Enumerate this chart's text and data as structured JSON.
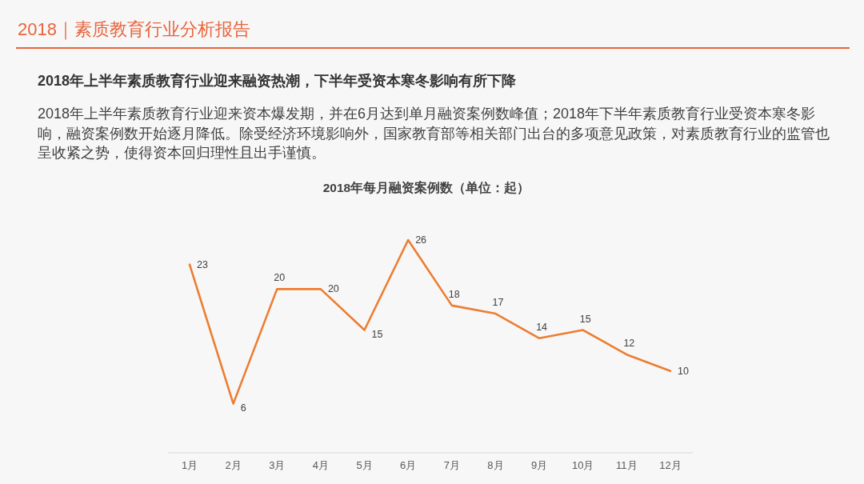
{
  "chart_data": {
    "type": "line",
    "title": "2018年每月融资案例数（单位：起）",
    "annotations": [
      "2018｜素质教育行业分析报告",
      "2018年上半年素质教育行业迎来融资热潮，下半年受资本寒冬影响有所下降",
      "2018年上半年素质教育行业迎来资本爆发期，并在6月达到单月融资案例数峰值；2018年下半年素质教育行业受资本寒冬影响，融资案例数开始逐月降低。除受经济环境影响外，国家教育部等相关部门出台的多项意见政策，对素质教育行业的监管也呈收紧之势，使得资本回归理性且出手谨慎。"
    ],
    "categories": [
      "1月",
      "2月",
      "3月",
      "4月",
      "5月",
      "6月",
      "7月",
      "8月",
      "9月",
      "10月",
      "11月",
      "12月"
    ],
    "values": [
      23,
      6,
      20,
      20,
      15,
      26,
      18,
      17,
      14,
      15,
      12,
      10
    ],
    "color": "#ed7d31",
    "data_labels": true
  }
}
